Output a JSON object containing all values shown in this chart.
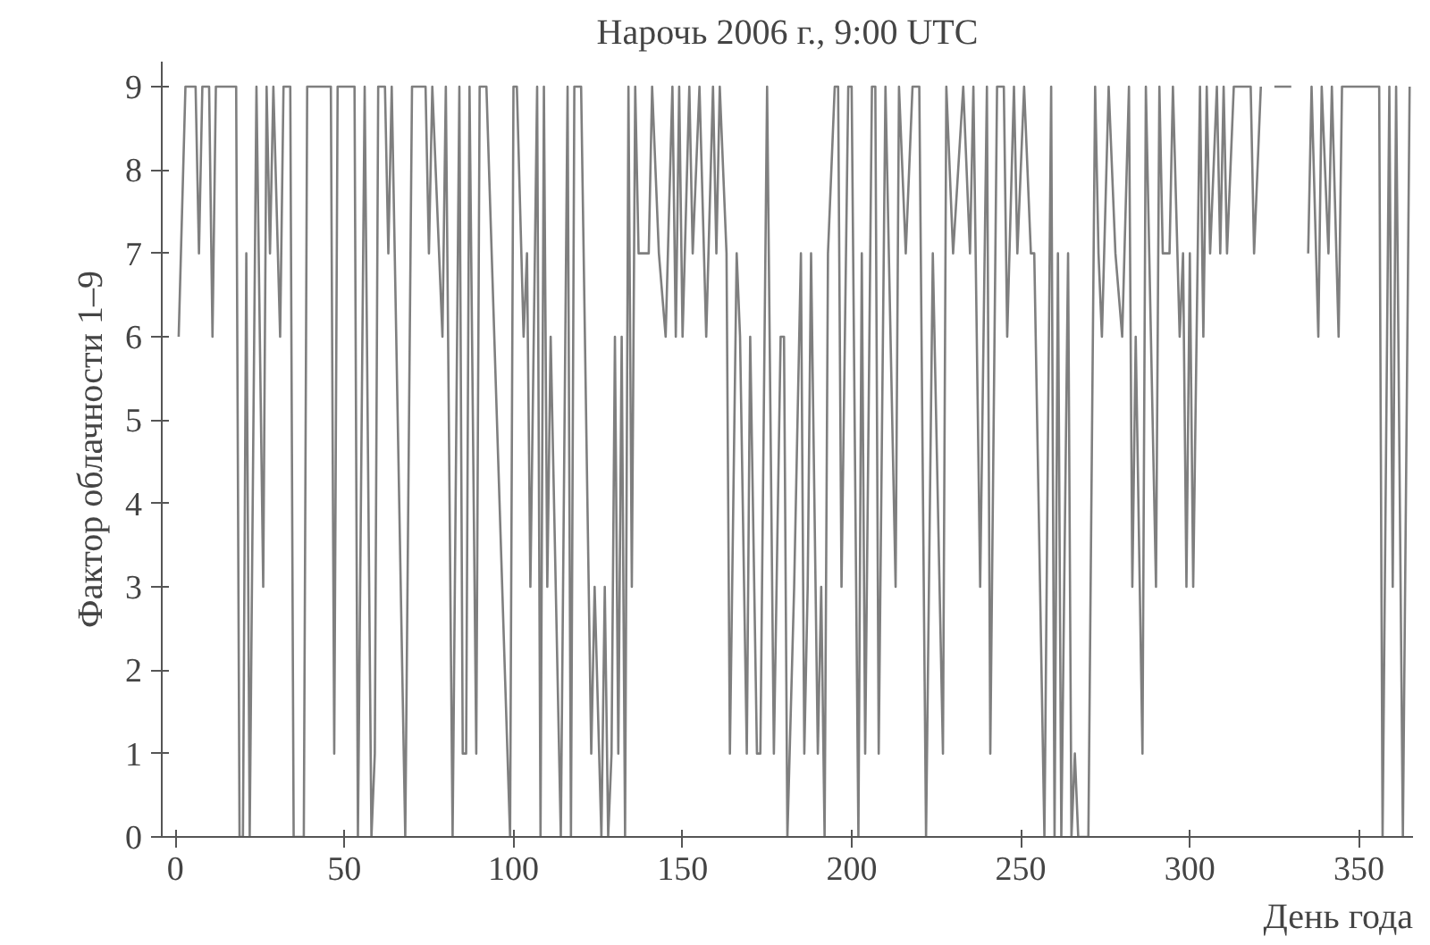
{
  "chart_data": {
    "type": "line",
    "title": "Нарочь 2006 г., 9:00 UTC",
    "xlabel": "День года",
    "ylabel": "Фактор облачности 1–9",
    "x": [
      1,
      3,
      6,
      7,
      8,
      10,
      11,
      12,
      18,
      19,
      20,
      21,
      22,
      24,
      26,
      27,
      28,
      29,
      31,
      32,
      34,
      35,
      38,
      39,
      46,
      47,
      48,
      53,
      54,
      56,
      58,
      59,
      60,
      62,
      63,
      64,
      68,
      70,
      74,
      75,
      76,
      79,
      80,
      82,
      84,
      85,
      86,
      87,
      89,
      90,
      92,
      99,
      100,
      101,
      103,
      104,
      105,
      107,
      108,
      109,
      110,
      111,
      114,
      116,
      117,
      118,
      120,
      123,
      124,
      126,
      127,
      128,
      129,
      130,
      131,
      132,
      133,
      134,
      135,
      136,
      137,
      140,
      141,
      143,
      145,
      147,
      148,
      149,
      150,
      152,
      153,
      155,
      157,
      159,
      160,
      161,
      163,
      164,
      166,
      167,
      169,
      170,
      172,
      173,
      175,
      177,
      179,
      180,
      181,
      183,
      185,
      186,
      187,
      188,
      190,
      191,
      192,
      193,
      195,
      196,
      197,
      199,
      200,
      202,
      203,
      204,
      206,
      207,
      208,
      210,
      213,
      214,
      216,
      218,
      220,
      222,
      224,
      227,
      228,
      230,
      233,
      235,
      236,
      238,
      240,
      241,
      243,
      245,
      246,
      248,
      249,
      251,
      253,
      254,
      257,
      259,
      260,
      261,
      262,
      264,
      265,
      266,
      267,
      270,
      272,
      273,
      274,
      276,
      278,
      280,
      282,
      283,
      284,
      286,
      287,
      288,
      290,
      291,
      292,
      294,
      295,
      297,
      298,
      299,
      300,
      301,
      303,
      304,
      305,
      306,
      308,
      309,
      310,
      311,
      313,
      318,
      319,
      321,
      323,
      325,
      330,
      331,
      335,
      336,
      338,
      339,
      341,
      342,
      344,
      345,
      356,
      357,
      359,
      360,
      361,
      363,
      365
    ],
    "series": [
      {
        "color": "#7f7f7f",
        "values": [
          6,
          9,
          9,
          7,
          9,
          9,
          6,
          9,
          9,
          0,
          0,
          7,
          0,
          9,
          3,
          9,
          7,
          9,
          6,
          9,
          9,
          0,
          0,
          9,
          9,
          1,
          9,
          9,
          0,
          9,
          0,
          1,
          9,
          9,
          7,
          9,
          0,
          9,
          9,
          7,
          9,
          6,
          9,
          0,
          9,
          1,
          1,
          9,
          1,
          9,
          9,
          0,
          9,
          9,
          6,
          7,
          3,
          9,
          0,
          9,
          3,
          6,
          0,
          9,
          0,
          9,
          9,
          1,
          3,
          0,
          3,
          0,
          1,
          6,
          1,
          6,
          0,
          9,
          3,
          9,
          7,
          7,
          9,
          7,
          6,
          9,
          6,
          9,
          6,
          9,
          7,
          9,
          6,
          9,
          7,
          9,
          7,
          1,
          7,
          6,
          1,
          6,
          1,
          1,
          9,
          1,
          6,
          6,
          0,
          3,
          7,
          1,
          3,
          7,
          1,
          3,
          0,
          7,
          9,
          9,
          3,
          9,
          9,
          0,
          7,
          1,
          9,
          9,
          1,
          9,
          3,
          9,
          7,
          9,
          9,
          0,
          7,
          1,
          9,
          7,
          9,
          7,
          9,
          3,
          9,
          1,
          9,
          9,
          6,
          9,
          7,
          9,
          7,
          7,
          0,
          9,
          0,
          7,
          0,
          7,
          0,
          1,
          0,
          0,
          9,
          7,
          6,
          9,
          7,
          6,
          9,
          3,
          6,
          1,
          9,
          7,
          3,
          9,
          7,
          7,
          9,
          6,
          7,
          3,
          7,
          3,
          9,
          6,
          9,
          7,
          9,
          7,
          9,
          7,
          9,
          9,
          7,
          9,
          null,
          9,
          9,
          null,
          7,
          9,
          6,
          9,
          7,
          9,
          6,
          9,
          9,
          0,
          9,
          3,
          9,
          0,
          9
        ]
      }
    ],
    "xlim": [
      -4,
      366
    ],
    "ylim": [
      0,
      9.3
    ],
    "xticks": [
      0,
      50,
      100,
      150,
      200,
      250,
      300,
      350
    ],
    "yticks": [
      0,
      1,
      2,
      3,
      4,
      5,
      6,
      7,
      8,
      9
    ],
    "grid": false,
    "marker": "none",
    "line_style": "solid"
  }
}
